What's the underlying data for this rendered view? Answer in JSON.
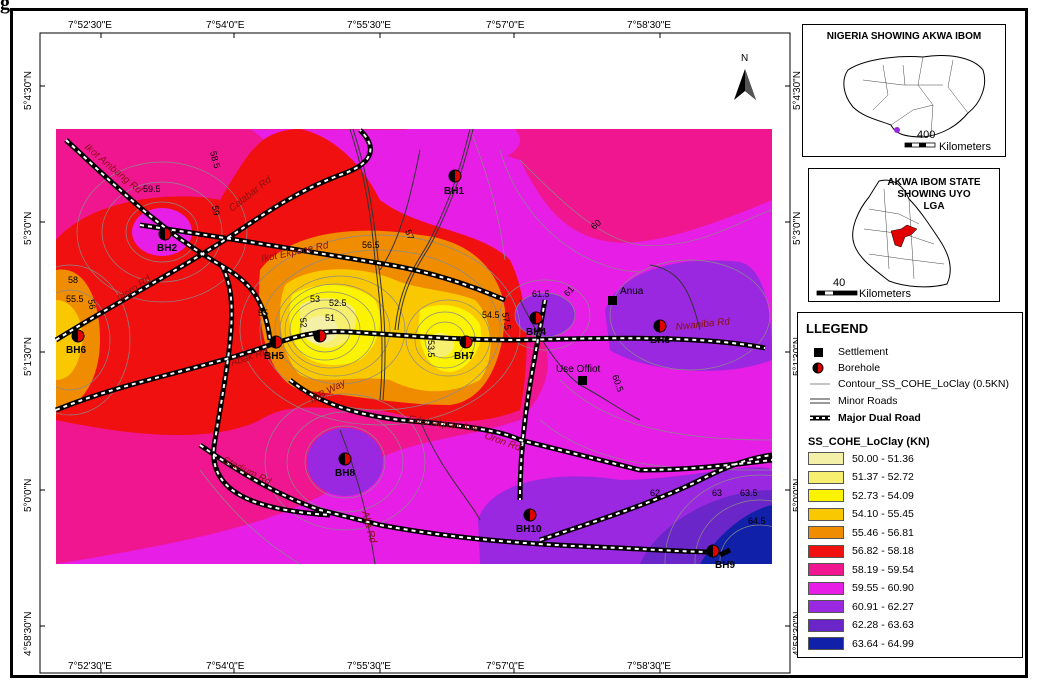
{
  "figure_label": "g",
  "graticule": {
    "longitudes": [
      "7°52'30\"E",
      "7°54'0\"E",
      "7°55'30\"E",
      "7°57'0\"E",
      "7°58'30\"E"
    ],
    "latitudes": [
      "5°4'30\"N",
      "5°3'0\"N",
      "5°1'30\"N",
      "5°0'0\"N",
      "4°58'30\"N"
    ]
  },
  "north_arrow": "N",
  "boreholes": [
    {
      "id": "BH1",
      "label": "BH1"
    },
    {
      "id": "BH2",
      "label": "BH2"
    },
    {
      "id": "BH3",
      "label": "BH3"
    },
    {
      "id": "BH4",
      "label": "BH4"
    },
    {
      "id": "BH5",
      "label": "BH5"
    },
    {
      "id": "BH6",
      "label": "BH6"
    },
    {
      "id": "BH7",
      "label": "BH7"
    },
    {
      "id": "BH8",
      "label": "BH8"
    },
    {
      "id": "BH9",
      "label": "BH9"
    },
    {
      "id": "BH10",
      "label": "BH10"
    }
  ],
  "settlements": [
    "Anua",
    "Use Offiot"
  ],
  "roads": [
    "Ikot Ambang Rd",
    "Calabar Rd",
    "Ikot Ekpene Rd",
    "Idoro Rd",
    "Abak Rd",
    "IBB Way",
    "Edet Akpan Ave",
    "Oron Rd",
    "Nwaniba Rd",
    "Stadium Rd",
    "Aka Rd"
  ],
  "contour_labels": [
    "59.5",
    "58.5",
    "59",
    "57",
    "56.5",
    "58",
    "56",
    "55.5",
    "55",
    "53",
    "52.5",
    "51",
    "52",
    "53.5",
    "54.5",
    "57.5",
    "61.5",
    "61",
    "60",
    "60.5",
    "62",
    "63",
    "63.5",
    "64.5"
  ],
  "inset_nigeria": {
    "title": "NIGERIA SHOWING AKWA IBOM",
    "scale_value": "400",
    "scale_unit": "Kilometers"
  },
  "inset_akwa_ibom": {
    "title_line1": "AKWA IBOM STATE",
    "title_line2": "SHOWING UYO",
    "title_line3": "LGA",
    "scale_value": "40",
    "scale_unit": "Kilometers"
  },
  "legend": {
    "title": "LLEGEND",
    "items": [
      {
        "label": "Settlement",
        "symbol": "square"
      },
      {
        "label": "Borehole",
        "symbol": "half-circle"
      },
      {
        "label": "Contour_SS_COHE_LoClay (0.5KN)",
        "symbol": "thin-line"
      },
      {
        "label": "Minor Roads",
        "symbol": "double-line"
      },
      {
        "label": "Major Dual Road",
        "symbol": "dashed-road"
      }
    ],
    "classes_title": "SS_COHE_LoClay (KN)",
    "classes": [
      {
        "range": "50.00 - 51.36",
        "color": "#f5f0a8"
      },
      {
        "range": "51.37 - 52.72",
        "color": "#f7ef70"
      },
      {
        "range": "52.73 - 54.09",
        "color": "#fbf300"
      },
      {
        "range": "54.10 - 55.45",
        "color": "#f9c800"
      },
      {
        "range": "55.46 - 56.81",
        "color": "#f08c00"
      },
      {
        "range": "56.82 - 58.18",
        "color": "#f01010"
      },
      {
        "range": "58.19 - 59.54",
        "color": "#f01690"
      },
      {
        "range": "59.55 - 60.90",
        "color": "#e61ee6"
      },
      {
        "range": "60.91 - 62.27",
        "color": "#9a28e0"
      },
      {
        "range": "62.28 - 63.63",
        "color": "#6a26c8"
      },
      {
        "range": "63.64 - 64.99",
        "color": "#1020a8"
      }
    ]
  }
}
